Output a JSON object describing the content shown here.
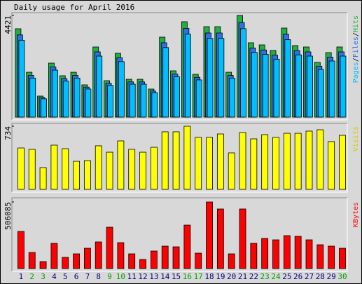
{
  "chart_data": [
    {
      "type": "bar",
      "title": "Daily usage for April 2016",
      "legend_separator": "/",
      "ylim": [
        0,
        4421
      ],
      "yticks": [
        4421
      ],
      "series": [
        {
          "name": "Hits",
          "color": "#20b040",
          "values": [
            3842,
            1951,
            915,
            2348,
            1799,
            1951,
            1403,
            3049,
            1585,
            2775,
            1646,
            1646,
            1220,
            3476,
            2012,
            4147,
            1860,
            3933,
            3933,
            1951,
            4421,
            3232,
            3140,
            2897,
            3872,
            3110,
            3049,
            2378,
            2805,
            3049
          ]
        },
        {
          "name": "Files",
          "color": "#2f6fe8",
          "values": [
            3573,
            1814,
            851,
            2184,
            1673,
            1814,
            1305,
            2836,
            1474,
            2581,
            1531,
            1531,
            1135,
            3233,
            1871,
            3857,
            1730,
            3658,
            3658,
            1814,
            4112,
            3006,
            2920,
            2694,
            3601,
            2892,
            2836,
            2212,
            2609,
            2836
          ]
        },
        {
          "name": "Pages",
          "color": "#00bfff",
          "values": [
            3343,
            1697,
            796,
            2043,
            1565,
            1697,
            1221,
            2653,
            1379,
            2414,
            1432,
            1432,
            1061,
            3024,
            1750,
            3608,
            1618,
            3422,
            3422,
            1697,
            3846,
            2812,
            2732,
            2520,
            3369,
            2706,
            2653,
            2069,
            2440,
            2653
          ]
        }
      ]
    },
    {
      "type": "bar",
      "ylim": [
        0,
        734
      ],
      "yticks": [
        734
      ],
      "series": [
        {
          "name": "Visits",
          "color": "#ffff00",
          "label_color": "#d8c800",
          "values": [
            481,
            465,
            253,
            514,
            473,
            326,
            334,
            506,
            432,
            563,
            465,
            432,
            489,
            669,
            669,
            734,
            604,
            604,
            644,
            424,
            661,
            587,
            636,
            604,
            652,
            652,
            677,
            693,
            555,
            628
          ]
        }
      ]
    },
    {
      "type": "bar",
      "ylim": [
        0,
        506085
      ],
      "yticks": [
        506085
      ],
      "categories": [
        "1",
        "2",
        "3",
        "4",
        "5",
        "6",
        "7",
        "8",
        "9",
        "10",
        "11",
        "12",
        "13",
        "14",
        "15",
        "16",
        "17",
        "18",
        "19",
        "20",
        "21",
        "22",
        "23",
        "24",
        "25",
        "26",
        "27",
        "28",
        "29",
        "30"
      ],
      "category_label_colors": [
        "#000080",
        "#00a000",
        "#00a000",
        "#000080",
        "#000080",
        "#000080",
        "#000080",
        "#000080",
        "#00a000",
        "#00a000",
        "#000080",
        "#000080",
        "#000080",
        "#000080",
        "#000080",
        "#00a000",
        "#00a000",
        "#000080",
        "#000080",
        "#000080",
        "#000080",
        "#000080",
        "#00a000",
        "#00a000",
        "#000080",
        "#000080",
        "#000080",
        "#000080",
        "#000080",
        "#00a000"
      ],
      "series": [
        {
          "name": "KBytes",
          "color": "#ff0000",
          "values": [
            282331,
            122521,
            53270,
            191772,
            85232,
            111867,
            154483,
            202426,
            314293,
            197099,
            111867,
            69251,
            133175,
            170464,
            165137,
            330274,
            117194,
            506085,
            452795,
            111867,
            452795,
            191772,
            229061,
            218407,
            250369,
            245042,
            218407,
            181118,
            170464,
            154483
          ]
        }
      ]
    }
  ]
}
